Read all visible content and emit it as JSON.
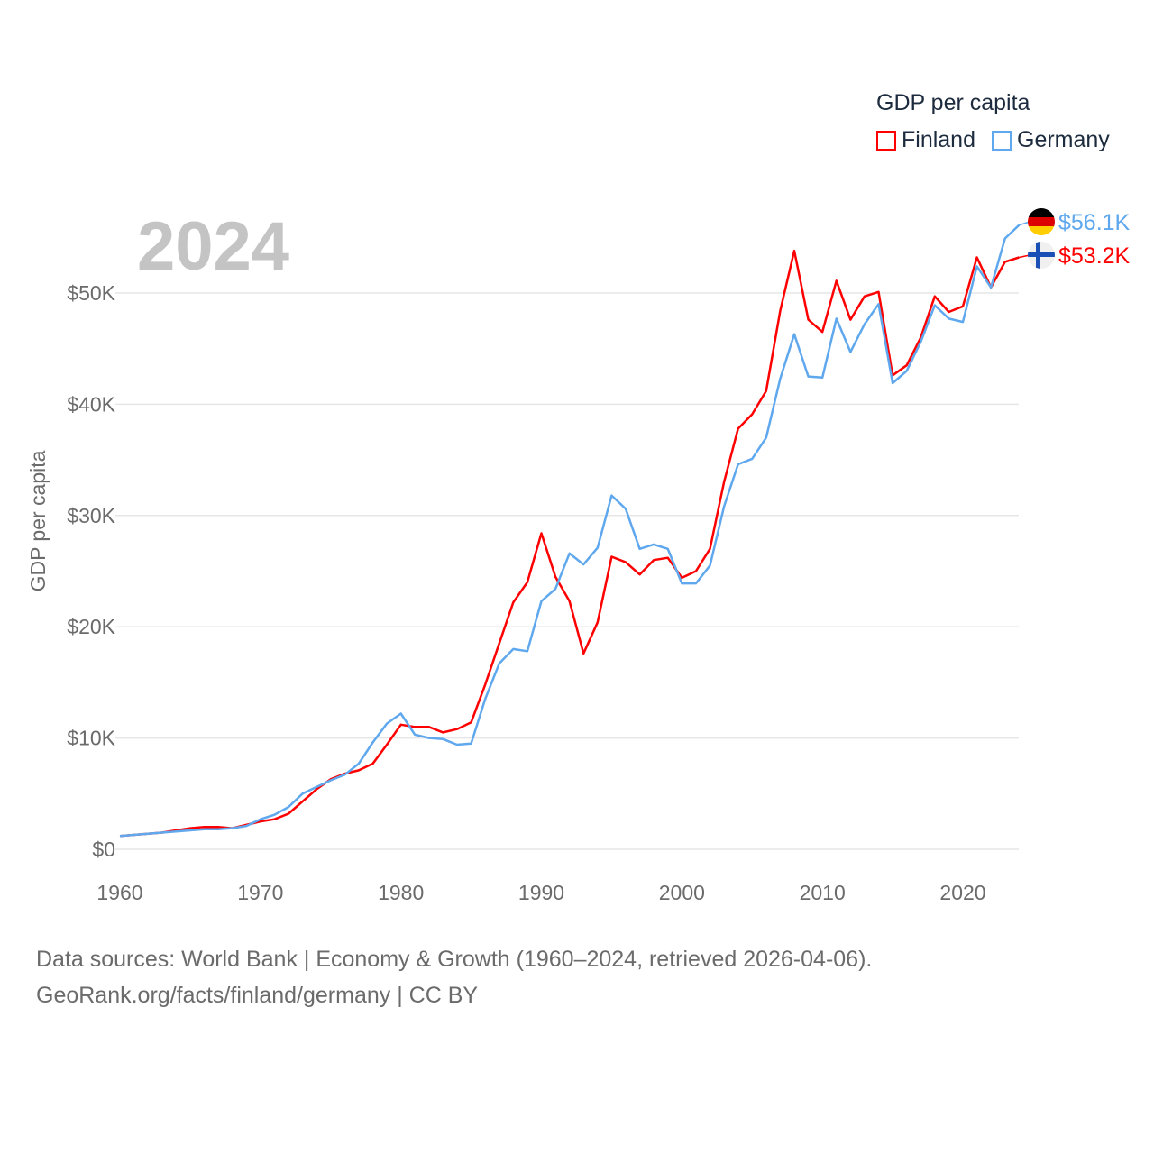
{
  "year_label": "2024",
  "legend": {
    "title": "GDP per capita",
    "items": [
      {
        "name": "Finland",
        "color": "#ff0000"
      },
      {
        "name": "Germany",
        "color": "#5fa8ee"
      }
    ]
  },
  "source": {
    "line1": "Data sources: World Bank | Economy & Growth (1960–2024, retrieved 2026-04-06).",
    "line2": "GeoRank.org/facts/finland/germany | CC BY"
  },
  "chart_data": {
    "type": "line",
    "title": "GDP per capita",
    "xlabel": "",
    "ylabel": "GDP per capita",
    "xlim": [
      1960,
      2024
    ],
    "ylim": [
      0,
      50000
    ],
    "x_ticks": [
      1960,
      1970,
      1980,
      1990,
      2000,
      2010,
      2020
    ],
    "x_tick_labels": [
      "1960",
      "1970",
      "1980",
      "1990",
      "2000",
      "2010",
      "2020"
    ],
    "y_ticks": [
      0,
      10000,
      20000,
      30000,
      40000,
      50000
    ],
    "y_tick_labels": [
      "$0",
      "$10K",
      "$20K",
      "$30K",
      "$40K",
      "$50K"
    ],
    "grid": true,
    "legend_position": "top-right",
    "x_start": 1960,
    "series": [
      {
        "name": "Finland",
        "color": "#ff0000",
        "end_label": "$53.2K",
        "flag": "finland-flag",
        "values_k": [
          1.2,
          1.3,
          1.4,
          1.5,
          1.7,
          1.9,
          2.0,
          2.0,
          1.9,
          2.2,
          2.5,
          2.7,
          3.2,
          4.3,
          5.4,
          6.3,
          6.8,
          7.1,
          7.7,
          9.4,
          11.2,
          11.0,
          11.0,
          10.5,
          10.8,
          11.4,
          14.8,
          18.5,
          22.2,
          24.0,
          28.4,
          24.5,
          22.3,
          17.6,
          20.4,
          26.3,
          25.8,
          24.7,
          26.0,
          26.2,
          24.4,
          25.0,
          27.0,
          33.0,
          37.8,
          39.1,
          41.2,
          48.4,
          53.8,
          47.6,
          46.5,
          51.1,
          47.6,
          49.7,
          50.1,
          42.6,
          43.5,
          46.0,
          49.7,
          48.3,
          48.8,
          53.2,
          50.5,
          52.8,
          53.2
        ]
      },
      {
        "name": "Germany",
        "color": "#5fa8ee",
        "end_label": "$56.1K",
        "flag": "germany-flag",
        "values_k": [
          1.2,
          1.3,
          1.4,
          1.5,
          1.6,
          1.7,
          1.8,
          1.8,
          1.9,
          2.1,
          2.7,
          3.1,
          3.8,
          5.0,
          5.6,
          6.2,
          6.7,
          7.7,
          9.6,
          11.3,
          12.2,
          10.3,
          10.0,
          9.9,
          9.4,
          9.5,
          13.5,
          16.7,
          18.0,
          17.8,
          22.3,
          23.4,
          26.6,
          25.6,
          27.1,
          31.8,
          30.6,
          27.0,
          27.4,
          27.0,
          23.9,
          23.9,
          25.5,
          30.8,
          34.6,
          35.1,
          37.0,
          42.3,
          46.3,
          42.5,
          42.4,
          47.7,
          44.7,
          47.2,
          49.0,
          41.9,
          43.0,
          45.6,
          48.9,
          47.7,
          47.4,
          52.4,
          50.5,
          54.9,
          56.1
        ]
      }
    ]
  }
}
